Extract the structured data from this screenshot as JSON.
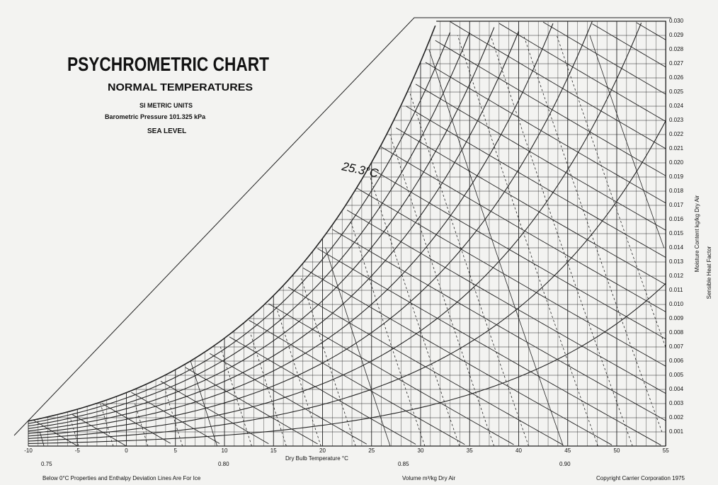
{
  "header": {
    "title": "PSYCHROMETRIC CHART",
    "subtitle": "NORMAL TEMPERATURES",
    "units": "SI METRIC UNITS",
    "pressure": "Barometric Pressure 101.325 kPa",
    "level": "SEA LEVEL"
  },
  "annotation": "25.3°C",
  "x_axis": {
    "label": "Dry Bulb Temperature °C",
    "ticks": [
      "-10",
      "-5",
      "0",
      "5",
      "10",
      "15",
      "20",
      "25",
      "30",
      "35",
      "40",
      "45",
      "50",
      "55"
    ]
  },
  "right_axis": {
    "label": "Moisture Content kg/kg Dry Air",
    "ticks": [
      "0.001",
      "0.002",
      "0.003",
      "0.004",
      "0.005",
      "0.006",
      "0.007",
      "0.008",
      "0.009",
      "0.010",
      "0.011",
      "0.012",
      "0.013",
      "0.014",
      "0.015",
      "0.016",
      "0.017",
      "0.018",
      "0.019",
      "0.020",
      "0.021",
      "0.022",
      "0.023",
      "0.024",
      "0.025",
      "0.026",
      "0.027",
      "0.028",
      "0.029",
      "0.030"
    ]
  },
  "shf_label": "Sensible Heat Factor",
  "volume_axis": {
    "label": "Volume m³/kg Dry Air",
    "ticks": [
      "0.75",
      "0.80",
      "0.85",
      "0.90"
    ]
  },
  "footnotes": {
    "left": "Below 0°C Properties and Enthalpy Deviation Lines Are For Ice",
    "right": "Copyright Carrier Corporation 1975"
  }
}
